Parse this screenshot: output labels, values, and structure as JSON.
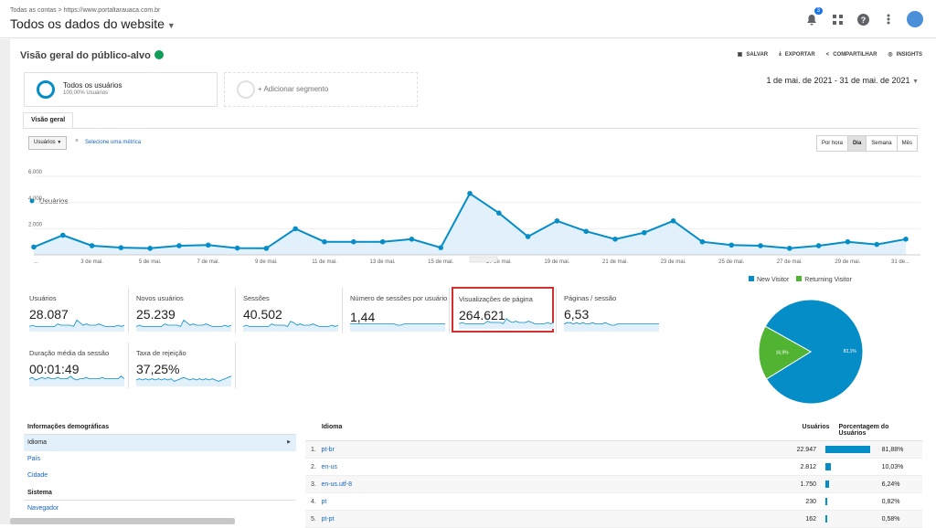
{
  "header": {
    "breadcrumb": "Todas as contas > https://www.portaltarauaca.com.br",
    "site_title": "Todos os dados do website",
    "notif_count": "3"
  },
  "page": {
    "title": "Visão geral do público-alvo",
    "actions": [
      "SALVAR",
      "EXPORTAR",
      "COMPARTILHAR",
      "INSIGHTS"
    ]
  },
  "segments": {
    "all_users": "Todos os usuários",
    "all_users_sub": "100,00% Usuários",
    "add_segment": "+ Adicionar segmento"
  },
  "date_range": "1 de mai. de 2021 - 31 de mai. de 2021",
  "tabs": [
    "Visão geral"
  ],
  "metric_selector": {
    "selected": "Usuários",
    "add": "Selecione uma métrica"
  },
  "periods": [
    "Por hora",
    "Dia",
    "Semana",
    "Mês"
  ],
  "chart_data": {
    "type": "area",
    "series": [
      {
        "name": "Usuários",
        "values": [
          600,
          1500,
          700,
          550,
          500,
          700,
          750,
          520,
          500,
          2000,
          1000,
          1000,
          1000,
          1200,
          550,
          4700,
          3200,
          1400,
          2600,
          1800,
          1200,
          1700,
          2600,
          1000,
          750,
          700,
          500,
          700,
          1000,
          800,
          1200
        ]
      }
    ],
    "x_ticks": [
      "...",
      "3 de mai.",
      "5 de mai.",
      "7 de mai.",
      "9 de mai.",
      "11 de mai.",
      "13 de mai.",
      "15 de mai.",
      "17 de mai.",
      "19 de mai.",
      "21 de mai.",
      "23 de mai.",
      "25 de mai.",
      "27 de mai.",
      "29 de mai.",
      "31 de..."
    ],
    "y_ticks": [
      "6.000",
      "4.000",
      "2.000"
    ],
    "ylim": [
      0,
      6500
    ],
    "legend": "top-left"
  },
  "kpis": [
    {
      "label": "Usuários",
      "value": "28.087"
    },
    {
      "label": "Novos usuários",
      "value": "25.239"
    },
    {
      "label": "Sessões",
      "value": "40.502"
    },
    {
      "label": "Número de sessões por usuário",
      "value": "1,44"
    },
    {
      "label": "Visualizações de página",
      "value": "264.621"
    },
    {
      "label": "Páginas / sessão",
      "value": "6,53"
    },
    {
      "label": "Duração média da sessão",
      "value": "00:01:49"
    },
    {
      "label": "Taxa de rejeição",
      "value": "37,25%"
    }
  ],
  "pie": {
    "legend": [
      "New Visitor",
      "Returning Visitor"
    ],
    "slices": [
      {
        "name": "New Visitor",
        "value": 83.1,
        "label": "83,1%",
        "color": "#058dc7"
      },
      {
        "name": "Returning Visitor",
        "value": 16.9,
        "label": "16,9%",
        "color": "#50b432"
      }
    ]
  },
  "demographics": {
    "heading": "Informações demográficas",
    "items": [
      "Idioma",
      "País",
      "Cidade"
    ],
    "system_heading": "Sistema",
    "system_items": [
      "Navegador"
    ]
  },
  "language_table": {
    "headers": {
      "name": "Idioma",
      "users": "Usuários",
      "pct": "Porcentagem do Usuários"
    },
    "rows": [
      {
        "idx": "1.",
        "name": "pt-br",
        "users": "22.947",
        "pct": "81,88%",
        "share": 81.88
      },
      {
        "idx": "2.",
        "name": "en-us",
        "users": "2.812",
        "pct": "10,03%",
        "share": 10.03
      },
      {
        "idx": "3.",
        "name": "en-us.utf-8",
        "users": "1.750",
        "pct": "6,24%",
        "share": 6.24
      },
      {
        "idx": "4.",
        "name": "pt",
        "users": "230",
        "pct": "0,82%",
        "share": 0.82
      },
      {
        "idx": "5.",
        "name": "pt-pt",
        "users": "162",
        "pct": "0,58%",
        "share": 0.58
      }
    ]
  }
}
